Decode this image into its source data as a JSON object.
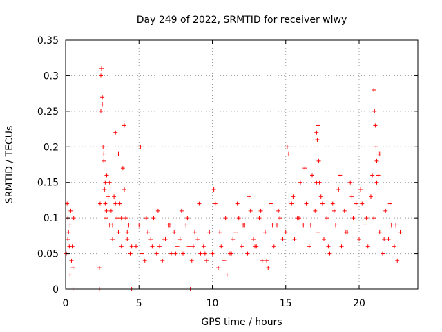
{
  "chart_data": {
    "type": "scatter",
    "title": "Day 249 of 2022, SRMTID for receiver wlwy",
    "xlabel": "GPS time / hours",
    "ylabel": "SRMTID / TECUs",
    "xlim": [
      0,
      24
    ],
    "ylim": [
      0,
      0.35
    ],
    "x_ticks": [
      "0",
      "5",
      "10",
      "15",
      "20"
    ],
    "x_tick_values": [
      0,
      5,
      10,
      15,
      20
    ],
    "y_ticks": [
      "0",
      "0.05",
      "0.1",
      "0.15",
      "0.2",
      "0.25",
      "0.3",
      "0.35"
    ],
    "y_tick_values": [
      0,
      0.05,
      0.1,
      0.15,
      0.2,
      0.25,
      0.3,
      0.35
    ],
    "grid": true,
    "marker": "+",
    "color": "#ff0000",
    "series": [
      {
        "name": "SRMTID",
        "x": [
          0.05,
          0.1,
          0.15,
          0.2,
          0.25,
          0.3,
          0.35,
          0.4,
          0.5,
          0.55,
          0.15,
          0.3,
          0.45,
          2.3,
          2.35,
          2.4,
          2.45,
          2.5,
          2.55,
          2.6,
          2.65,
          2.7,
          2.75,
          2.8,
          2.9,
          3.0,
          3.1,
          3.2,
          3.3,
          3.4,
          3.5,
          3.6,
          3.7,
          3.8,
          3.9,
          4.0,
          4.1,
          4.2,
          4.3,
          4.4,
          4.5,
          2.4,
          2.5,
          2.6,
          2.7,
          2.8,
          3.0,
          3.2,
          3.4,
          3.6,
          3.8,
          4.0,
          4.2,
          4.8,
          5.0,
          5.2,
          5.4,
          5.6,
          5.8,
          6.0,
          6.2,
          6.4,
          6.6,
          6.8,
          7.0,
          7.2,
          7.4,
          7.6,
          7.8,
          8.0,
          8.2,
          8.4,
          8.6,
          8.8,
          9.0,
          9.2,
          9.4,
          9.6,
          9.8,
          5.1,
          5.5,
          5.9,
          6.3,
          6.7,
          7.1,
          7.5,
          7.9,
          8.3,
          8.7,
          9.1,
          9.5,
          10.0,
          10.2,
          10.4,
          10.6,
          10.8,
          11.0,
          11.2,
          11.4,
          11.6,
          11.8,
          12.0,
          12.2,
          12.4,
          12.6,
          12.8,
          13.0,
          13.2,
          13.4,
          13.6,
          13.8,
          14.0,
          14.2,
          14.4,
          14.6,
          14.8,
          10.1,
          10.5,
          10.9,
          11.3,
          11.7,
          12.1,
          12.5,
          12.9,
          13.3,
          13.7,
          14.1,
          14.5,
          15.0,
          15.2,
          15.4,
          15.6,
          15.8,
          16.0,
          16.2,
          16.4,
          16.6,
          16.8,
          17.0,
          17.2,
          17.4,
          17.6,
          17.8,
          18.0,
          18.2,
          18.4,
          18.6,
          18.8,
          19.0,
          19.2,
          19.4,
          19.6,
          19.8,
          15.1,
          15.5,
          15.9,
          16.3,
          16.7,
          17.1,
          17.5,
          17.9,
          18.3,
          18.7,
          19.1,
          19.5,
          17.1,
          17.15,
          17.2,
          17.25,
          17.3,
          20.0,
          20.2,
          20.4,
          20.6,
          20.8,
          21.0,
          21.2,
          21.4,
          21.6,
          21.8,
          22.0,
          22.2,
          22.4,
          22.6,
          22.8,
          20.1,
          20.5,
          20.9,
          21.3,
          21.7,
          22.1,
          22.5,
          21.0,
          21.05,
          21.1,
          21.15,
          21.2,
          21.3,
          21.4,
          0.5,
          2.3,
          4.5,
          8.5
        ],
        "y": [
          0.05,
          0.12,
          0.1,
          0.08,
          0.06,
          0.09,
          0.11,
          0.04,
          0.03,
          0.1,
          0.07,
          0.02,
          0.06,
          0.03,
          0.12,
          0.25,
          0.31,
          0.27,
          0.2,
          0.18,
          0.14,
          0.12,
          0.1,
          0.16,
          0.13,
          0.15,
          0.11,
          0.09,
          0.13,
          0.22,
          0.1,
          0.08,
          0.12,
          0.06,
          0.17,
          0.14,
          0.1,
          0.07,
          0.09,
          0.05,
          0.06,
          0.3,
          0.26,
          0.19,
          0.15,
          0.11,
          0.09,
          0.07,
          0.12,
          0.19,
          0.1,
          0.23,
          0.08,
          0.06,
          0.09,
          0.05,
          0.04,
          0.08,
          0.07,
          0.1,
          0.05,
          0.06,
          0.04,
          0.07,
          0.09,
          0.05,
          0.08,
          0.06,
          0.07,
          0.05,
          0.09,
          0.06,
          0.04,
          0.08,
          0.07,
          0.05,
          0.06,
          0.04,
          0.08,
          0.2,
          0.1,
          0.06,
          0.11,
          0.07,
          0.09,
          0.05,
          0.11,
          0.1,
          0.06,
          0.12,
          0.05,
          0.05,
          0.12,
          0.03,
          0.06,
          0.04,
          0.02,
          0.05,
          0.07,
          0.08,
          0.1,
          0.06,
          0.09,
          0.05,
          0.11,
          0.07,
          0.06,
          0.1,
          0.04,
          0.08,
          0.03,
          0.12,
          0.06,
          0.09,
          0.1,
          0.07,
          0.14,
          0.08,
          0.1,
          0.05,
          0.12,
          0.09,
          0.13,
          0.06,
          0.11,
          0.04,
          0.09,
          0.11,
          0.08,
          0.19,
          0.12,
          0.07,
          0.1,
          0.15,
          0.09,
          0.12,
          0.06,
          0.16,
          0.11,
          0.08,
          0.13,
          0.07,
          0.1,
          0.05,
          0.12,
          0.09,
          0.14,
          0.06,
          0.11,
          0.08,
          0.15,
          0.1,
          0.12,
          0.2,
          0.13,
          0.1,
          0.17,
          0.09,
          0.15,
          0.12,
          0.06,
          0.11,
          0.16,
          0.08,
          0.13,
          0.22,
          0.21,
          0.23,
          0.18,
          0.15,
          0.07,
          0.12,
          0.09,
          0.06,
          0.13,
          0.1,
          0.15,
          0.08,
          0.05,
          0.11,
          0.07,
          0.09,
          0.06,
          0.04,
          0.08,
          0.14,
          0.1,
          0.16,
          0.19,
          0.07,
          0.12,
          0.09,
          0.28,
          0.25,
          0.23,
          0.2,
          0.18,
          0.16,
          0.19,
          0.0,
          0.0,
          0.0,
          0.0
        ]
      }
    ]
  }
}
